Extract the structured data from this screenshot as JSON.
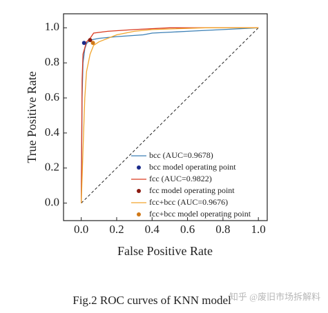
{
  "chart_data": {
    "type": "line",
    "x_label": "False Positive Rate",
    "y_label": "True Positive Rate",
    "caption": "Fig.2  ROC curves of KNN model",
    "watermark": "知乎 @废旧市场拆解料",
    "xlim": [
      -0.1,
      1.05
    ],
    "ylim": [
      -0.1,
      1.08
    ],
    "xticks": [
      {
        "value": 0,
        "label": "0.0"
      },
      {
        "value": 0.2,
        "label": "0.2"
      },
      {
        "value": 0.4,
        "label": "0.4"
      },
      {
        "value": 0.6,
        "label": "0.6"
      },
      {
        "value": 0.8,
        "label": "0.8"
      },
      {
        "value": 1,
        "label": "1.0"
      }
    ],
    "yticks": [
      {
        "value": 0,
        "label": "0.0"
      },
      {
        "value": 0.2,
        "label": "0.2"
      },
      {
        "value": 0.4,
        "label": "0.4"
      },
      {
        "value": 0.6,
        "label": "0.6"
      },
      {
        "value": 0.8,
        "label": "0.8"
      },
      {
        "value": 1,
        "label": "1.0"
      }
    ],
    "reference_line": {
      "x": [
        0,
        1
      ],
      "y": [
        0,
        1
      ]
    },
    "series": [
      {
        "name": "bcc (AUC=0.9678)",
        "color": "#3a7fb5",
        "x": [
          0,
          0.005,
          0.01,
          0.02,
          0.03,
          0.05,
          0.1,
          0.2,
          0.35,
          0.4,
          0.6,
          0.8,
          1
        ],
        "y": [
          0,
          0.6,
          0.8,
          0.88,
          0.91,
          0.93,
          0.94,
          0.95,
          0.96,
          0.97,
          0.98,
          0.99,
          1
        ]
      },
      {
        "name": "fcc (AUC=0.9822)",
        "color": "#d9391f",
        "x": [
          0,
          0.005,
          0.01,
          0.03,
          0.05,
          0.07,
          0.15,
          0.3,
          0.5,
          1
        ],
        "y": [
          0,
          0.7,
          0.85,
          0.92,
          0.94,
          0.97,
          0.98,
          0.99,
          1,
          1
        ]
      },
      {
        "name": "fcc+bcc (AUC=0.9676)",
        "color": "#f2a52c",
        "x": [
          0,
          0.01,
          0.02,
          0.03,
          0.05,
          0.07,
          0.1,
          0.2,
          0.3,
          0.4,
          0.7,
          1
        ],
        "y": [
          0,
          0.3,
          0.6,
          0.75,
          0.85,
          0.9,
          0.92,
          0.96,
          0.98,
          0.99,
          1,
          1
        ]
      }
    ],
    "points": [
      {
        "name": "bcc model operating point",
        "color": "#1a2a8a",
        "x": 0.016,
        "y": 0.914
      },
      {
        "name": "fcc model operating point",
        "color": "#8b1a10",
        "x": 0.05,
        "y": 0.93
      },
      {
        "name": "fcc+bcc model operating point",
        "color": "#d07818",
        "x": 0.066,
        "y": 0.914
      }
    ]
  }
}
